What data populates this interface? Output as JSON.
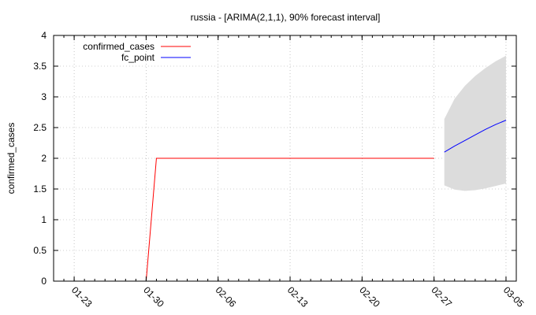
{
  "chart_data": {
    "type": "line",
    "title": "russia -  [ARIMA(2,1,1), 90% forecast interval]",
    "xlabel": "",
    "ylabel": "confirmed_cases",
    "xlim": [
      "2020-01-21",
      "2020-03-06"
    ],
    "ylim": [
      0,
      4
    ],
    "yticks": [
      0,
      0.5,
      1,
      1.5,
      2,
      2.5,
      3,
      3.5,
      4
    ],
    "xticks": [
      {
        "date": "2020-01-23",
        "label": "01-23"
      },
      {
        "date": "2020-01-30",
        "label": "01-30"
      },
      {
        "date": "2020-02-06",
        "label": "02-06"
      },
      {
        "date": "2020-02-13",
        "label": "02-13"
      },
      {
        "date": "2020-02-20",
        "label": "02-20"
      },
      {
        "date": "2020-02-27",
        "label": "02-27"
      },
      {
        "date": "2020-03-05",
        "label": "03-05"
      }
    ],
    "legend_position": "top-left",
    "series": [
      {
        "name": "confirmed_cases",
        "color": "#ff0000",
        "points": [
          {
            "x": "2020-01-30",
            "y": 0
          },
          {
            "x": "2020-01-31",
            "y": 2
          },
          {
            "x": "2020-02-27",
            "y": 2
          }
        ]
      },
      {
        "name": "fc_point",
        "color": "#0000ff",
        "points": [
          {
            "x": "2020-02-28",
            "y": 2.1
          },
          {
            "x": "2020-02-29",
            "y": 2.2
          },
          {
            "x": "2020-03-01",
            "y": 2.29
          },
          {
            "x": "2020-03-02",
            "y": 2.38
          },
          {
            "x": "2020-03-03",
            "y": 2.47
          },
          {
            "x": "2020-03-04",
            "y": 2.55
          },
          {
            "x": "2020-03-05",
            "y": 2.62
          }
        ]
      }
    ],
    "interval": {
      "color": "#dcdcdc",
      "points": [
        {
          "x": "2020-02-28",
          "lower": 1.56,
          "upper": 2.64
        },
        {
          "x": "2020-02-29",
          "lower": 1.49,
          "upper": 2.97
        },
        {
          "x": "2020-03-01",
          "lower": 1.47,
          "upper": 3.18
        },
        {
          "x": "2020-03-02",
          "lower": 1.48,
          "upper": 3.34
        },
        {
          "x": "2020-03-03",
          "lower": 1.51,
          "upper": 3.47
        },
        {
          "x": "2020-03-04",
          "lower": 1.55,
          "upper": 3.58
        },
        {
          "x": "2020-03-05",
          "lower": 1.59,
          "upper": 3.67
        }
      ]
    }
  }
}
